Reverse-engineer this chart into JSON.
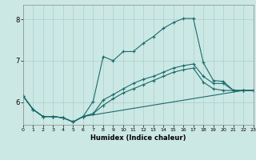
{
  "xlabel": "Humidex (Indice chaleur)",
  "xlim": [
    0,
    23
  ],
  "ylim": [
    5.45,
    8.35
  ],
  "yticks": [
    6,
    7,
    8
  ],
  "xticks": [
    0,
    1,
    2,
    3,
    4,
    5,
    6,
    7,
    8,
    9,
    10,
    11,
    12,
    13,
    14,
    15,
    16,
    17,
    18,
    19,
    20,
    21,
    22,
    23
  ],
  "bg_color": "#cce8e4",
  "grid_color": "#aacfcb",
  "line_color": "#1a6b6b",
  "series": [
    {
      "x": [
        0,
        1,
        2,
        3,
        4,
        5,
        6,
        7,
        8,
        9,
        10,
        11,
        12,
        13,
        14,
        15,
        16,
        17,
        18,
        19,
        20,
        21,
        22,
        23
      ],
      "y": [
        6.15,
        5.82,
        5.65,
        5.65,
        5.62,
        5.52,
        5.65,
        6.02,
        7.1,
        7.0,
        7.22,
        7.22,
        7.42,
        7.58,
        7.78,
        7.92,
        8.02,
        8.02,
        6.95,
        6.52,
        6.5,
        6.28,
        6.28,
        6.28
      ]
    },
    {
      "x": [
        0,
        1,
        2,
        3,
        4,
        5,
        6,
        7,
        8,
        9,
        10,
        11,
        12,
        13,
        14,
        15,
        16,
        17,
        18,
        19,
        20,
        21,
        22,
        23
      ],
      "y": [
        6.15,
        5.82,
        5.65,
        5.65,
        5.62,
        5.52,
        5.65,
        5.72,
        6.05,
        6.18,
        6.32,
        6.45,
        6.55,
        6.62,
        6.72,
        6.82,
        6.88,
        6.92,
        6.62,
        6.45,
        6.45,
        6.28,
        6.28,
        6.28
      ]
    },
    {
      "x": [
        0,
        1,
        2,
        3,
        4,
        5,
        6,
        7,
        8,
        9,
        10,
        11,
        12,
        13,
        14,
        15,
        16,
        17,
        18,
        19,
        20,
        21,
        22,
        23
      ],
      "y": [
        6.15,
        5.82,
        5.65,
        5.65,
        5.62,
        5.52,
        5.65,
        5.72,
        5.92,
        6.08,
        6.22,
        6.32,
        6.42,
        6.52,
        6.62,
        6.72,
        6.78,
        6.82,
        6.48,
        6.32,
        6.28,
        6.28,
        6.28,
        6.28
      ]
    },
    {
      "x": [
        0,
        1,
        2,
        3,
        4,
        5,
        6,
        22,
        23
      ],
      "y": [
        6.15,
        5.82,
        5.65,
        5.65,
        5.62,
        5.52,
        5.65,
        6.28,
        6.28
      ]
    }
  ],
  "marker": "+",
  "marker_size": 3,
  "line_width": 0.8
}
